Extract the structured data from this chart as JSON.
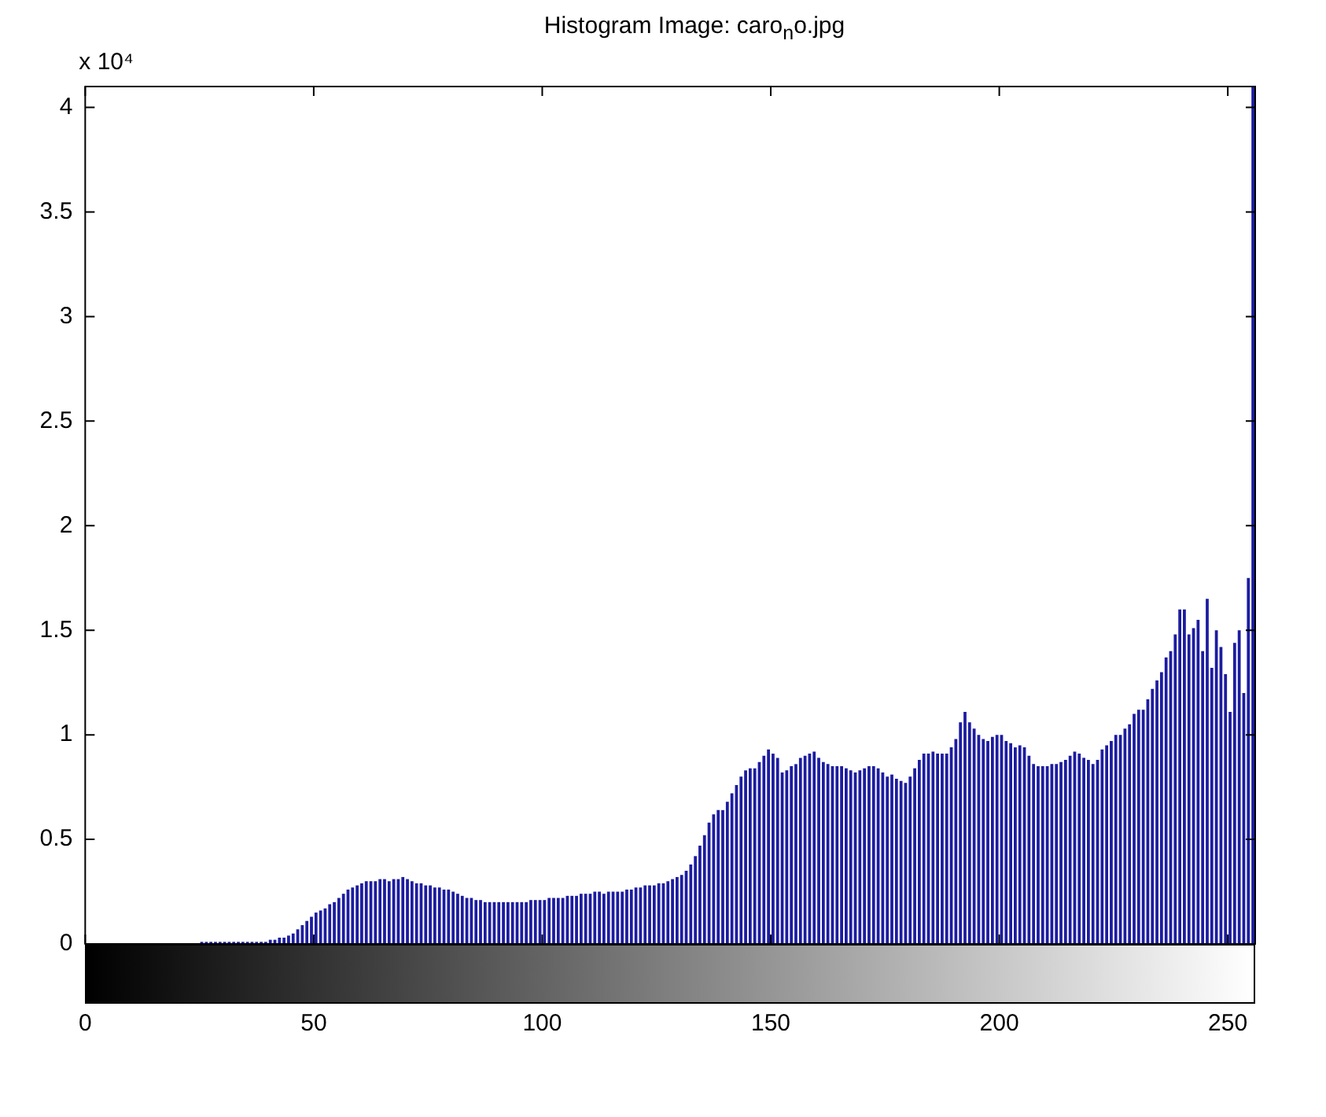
{
  "chart_data": {
    "type": "histogram",
    "title": "Histogram Image: caro$_{n}$o.jpg",
    "annotations": [
      "x 10⁴"
    ],
    "color": "#1c1ca0",
    "bins": [
      25,
      26,
      27,
      28,
      29,
      30,
      31,
      32,
      33,
      34,
      35,
      36,
      37,
      38,
      39,
      40,
      41,
      42,
      43,
      44,
      45,
      46,
      47,
      48,
      49,
      50,
      51,
      52,
      53,
      54,
      55,
      56,
      57,
      58,
      59,
      60,
      61,
      62,
      63,
      64,
      65,
      66,
      67,
      68,
      69,
      70,
      71,
      72,
      73,
      74,
      75,
      76,
      77,
      78,
      79,
      80,
      81,
      82,
      83,
      84,
      85,
      86,
      87,
      88,
      89,
      90,
      91,
      92,
      93,
      94,
      95,
      96,
      97,
      98,
      99,
      100,
      101,
      102,
      103,
      104,
      105,
      106,
      107,
      108,
      109,
      110,
      111,
      112,
      113,
      114,
      115,
      116,
      117,
      118,
      119,
      120,
      121,
      122,
      123,
      124,
      125,
      126,
      127,
      128,
      129,
      130,
      131,
      132,
      133,
      134,
      135,
      136,
      137,
      138,
      139,
      140,
      141,
      142,
      143,
      144,
      145,
      146,
      147,
      148,
      149,
      150,
      151,
      152,
      153,
      154,
      155,
      156,
      157,
      158,
      159,
      160,
      161,
      162,
      163,
      164,
      165,
      166,
      167,
      168,
      169,
      170,
      171,
      172,
      173,
      174,
      175,
      176,
      177,
      178,
      179,
      180,
      181,
      182,
      183,
      184,
      185,
      186,
      187,
      188,
      189,
      190,
      191,
      192,
      193,
      194,
      195,
      196,
      197,
      198,
      199,
      200,
      201,
      202,
      203,
      204,
      205,
      206,
      207,
      208,
      209,
      210,
      211,
      212,
      213,
      214,
      215,
      216,
      217,
      218,
      219,
      220,
      221,
      222,
      223,
      224,
      225,
      226,
      227,
      228,
      229,
      230,
      231,
      232,
      233,
      234,
      235,
      236,
      237,
      238,
      239,
      240,
      241,
      242,
      243,
      244,
      245,
      246,
      247,
      248,
      249,
      250,
      251,
      252,
      253,
      254,
      255,
      256
    ],
    "values": [
      0.01,
      0.01,
      0.01,
      0.01,
      0.01,
      0.01,
      0.01,
      0.01,
      0.01,
      0.01,
      0.01,
      0.01,
      0.01,
      0.01,
      0.01,
      0.02,
      0.02,
      0.03,
      0.03,
      0.04,
      0.05,
      0.07,
      0.09,
      0.11,
      0.13,
      0.15,
      0.16,
      0.17,
      0.19,
      0.2,
      0.22,
      0.24,
      0.26,
      0.27,
      0.28,
      0.29,
      0.3,
      0.3,
      0.3,
      0.31,
      0.31,
      0.3,
      0.31,
      0.31,
      0.32,
      0.31,
      0.3,
      0.29,
      0.29,
      0.28,
      0.28,
      0.27,
      0.27,
      0.26,
      0.26,
      0.25,
      0.24,
      0.23,
      0.22,
      0.22,
      0.21,
      0.21,
      0.2,
      0.2,
      0.2,
      0.2,
      0.2,
      0.2,
      0.2,
      0.2,
      0.2,
      0.2,
      0.21,
      0.21,
      0.21,
      0.21,
      0.22,
      0.22,
      0.22,
      0.22,
      0.23,
      0.23,
      0.23,
      0.24,
      0.24,
      0.24,
      0.25,
      0.25,
      0.24,
      0.25,
      0.25,
      0.25,
      0.25,
      0.26,
      0.26,
      0.27,
      0.27,
      0.28,
      0.28,
      0.28,
      0.29,
      0.29,
      0.3,
      0.31,
      0.32,
      0.33,
      0.35,
      0.38,
      0.42,
      0.47,
      0.52,
      0.58,
      0.62,
      0.64,
      0.64,
      0.68,
      0.72,
      0.76,
      0.8,
      0.83,
      0.84,
      0.84,
      0.87,
      0.9,
      0.93,
      0.91,
      0.89,
      0.82,
      0.83,
      0.85,
      0.86,
      0.89,
      0.9,
      0.91,
      0.92,
      0.89,
      0.87,
      0.86,
      0.85,
      0.85,
      0.85,
      0.84,
      0.83,
      0.82,
      0.83,
      0.84,
      0.85,
      0.85,
      0.84,
      0.82,
      0.8,
      0.81,
      0.79,
      0.78,
      0.77,
      0.8,
      0.84,
      0.88,
      0.91,
      0.91,
      0.92,
      0.91,
      0.91,
      0.91,
      0.94,
      0.98,
      1.06,
      1.11,
      1.06,
      1.03,
      1,
      0.98,
      0.97,
      0.99,
      1,
      1,
      0.97,
      0.96,
      0.94,
      0.95,
      0.94,
      0.9,
      0.86,
      0.85,
      0.85,
      0.85,
      0.86,
      0.86,
      0.87,
      0.88,
      0.9,
      0.92,
      0.91,
      0.89,
      0.88,
      0.86,
      0.88,
      0.93,
      0.95,
      0.97,
      1,
      1,
      1.03,
      1.05,
      1.1,
      1.12,
      1.12,
      1.17,
      1.22,
      1.26,
      1.3,
      1.37,
      1.4,
      1.48,
      1.6,
      1.6,
      1.48,
      1.51,
      1.55,
      1.4,
      1.65,
      1.32,
      1.5,
      1.42,
      1.29,
      1.11,
      1.44,
      1.5,
      1.2,
      1.75,
      4.1
    ],
    "xlim": [
      0,
      256
    ],
    "xticks": [
      0,
      50,
      100,
      150,
      200,
      250
    ],
    "ylim": [
      0,
      4.1
    ],
    "yticks": [
      0,
      0.5,
      1,
      1.5,
      2,
      2.5,
      3,
      3.5,
      4
    ],
    "grid": false
  }
}
